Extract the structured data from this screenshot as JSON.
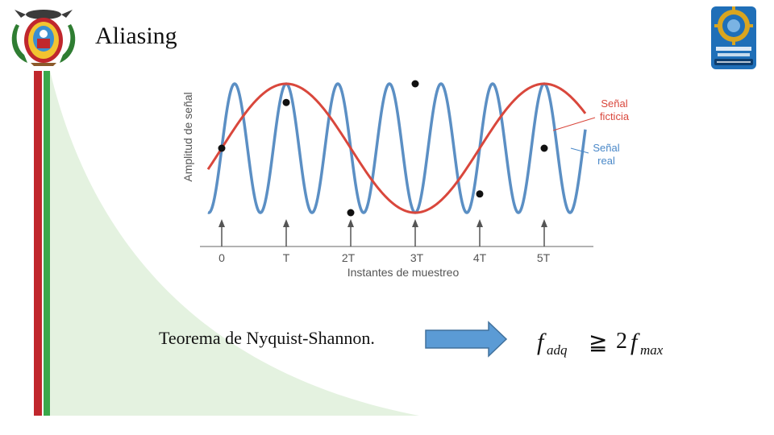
{
  "slide": {
    "title": "Aliasing",
    "theorem": "Teorema de Nyquist-Shannon."
  },
  "colors": {
    "red_stripe": "#c0272d",
    "green_stripe": "#3aa84a",
    "green_fill": "#e4f2e0",
    "real_signal": "#5b8fc4",
    "fictitious_signal": "#d9473c",
    "label_red": "#d9473c",
    "label_blue": "#4a88c8",
    "arrow_fill": "#5b9bd5",
    "arrow_stroke": "#41719c"
  },
  "figure": {
    "ylabel": "Amplitud de señal",
    "xlabel": "Instantes de muestreo",
    "ticks": [
      "0",
      "T",
      "2T",
      "3T",
      "4T",
      "5T"
    ],
    "legend": {
      "fictitious_line1": "Señal",
      "fictitious_line2": "ficticia",
      "real_line1": "Señal",
      "real_line2": "real"
    }
  },
  "chart_data": {
    "type": "line",
    "xlabel": "Instantes de muestreo",
    "ylabel": "Amplitud de señal",
    "x_ticks": [
      "0",
      "T",
      "2T",
      "3T",
      "4T",
      "5T"
    ],
    "series": [
      {
        "name": "Señal real",
        "cycles_per_T": 1.25
      },
      {
        "name": "Señal ficticia",
        "cycles_per_T": 0.25
      }
    ],
    "samples": [
      {
        "t": "0",
        "amplitude": 0.0
      },
      {
        "t": "T",
        "amplitude": 0.71
      },
      {
        "t": "2T",
        "amplitude": -1.0
      },
      {
        "t": "3T",
        "amplitude": 1.0
      },
      {
        "t": "4T",
        "amplitude": -0.71
      },
      {
        "t": "5T",
        "amplitude": 0.0
      }
    ]
  },
  "formula": {
    "f": "f",
    "sub_adq": "adq",
    "relation": "≧",
    "coef": "2",
    "sub_max": "max"
  },
  "icons": {
    "left_logo": "university-coat-of-arms-icon",
    "right_logo": "espe-mecatronica-badge-icon",
    "arrow": "right-arrow-icon"
  }
}
